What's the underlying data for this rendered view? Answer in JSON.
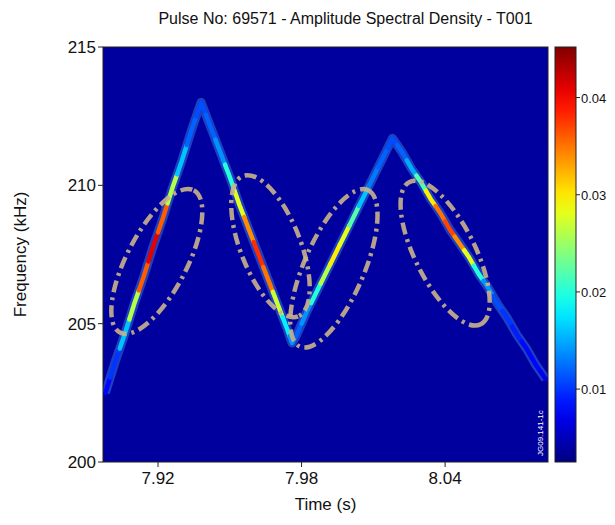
{
  "chart_data": {
    "type": "spectrogram",
    "title": "Pulse No: 69571 - Amplitude Spectral Density - T001",
    "x_label": "Time (s)",
    "y_label": "Frequency (kHz)",
    "x": [
      7.898,
      7.902,
      7.906,
      7.91,
      7.914,
      7.918,
      7.922,
      7.926,
      7.93,
      7.934,
      7.938,
      7.942,
      7.946,
      7.95,
      7.954,
      7.958,
      7.962,
      7.966,
      7.97,
      7.974,
      7.976,
      7.978,
      7.982,
      7.986,
      7.99,
      7.994,
      7.998,
      8.002,
      8.006,
      8.01,
      8.014,
      8.018,
      8.022,
      8.026,
      8.03,
      8.034,
      8.038,
      8.042,
      8.046,
      8.05,
      8.054,
      8.058,
      8.062,
      8.066,
      8.07,
      8.074,
      8.078,
      8.082
    ],
    "values": [
      202.5,
      203.6,
      204.6,
      205.7,
      206.7,
      207.8,
      208.8,
      209.9,
      210.9,
      212.0,
      213.0,
      212.1,
      211.2,
      210.3,
      209.3,
      208.4,
      207.5,
      206.6,
      205.7,
      204.8,
      204.3,
      204.6,
      205.4,
      206.1,
      206.8,
      207.5,
      208.2,
      208.9,
      209.6,
      210.3,
      211.0,
      211.7,
      211.2,
      210.6,
      210.1,
      209.5,
      209.0,
      208.4,
      207.9,
      207.4,
      206.8,
      206.3,
      205.7,
      205.2,
      204.6,
      204.1,
      203.5,
      203.0
    ],
    "amplitude": [
      0.008,
      0.01,
      0.016,
      0.026,
      0.036,
      0.041,
      0.036,
      0.026,
      0.016,
      0.012,
      0.011,
      0.012,
      0.014,
      0.02,
      0.028,
      0.034,
      0.038,
      0.035,
      0.027,
      0.018,
      0.014,
      0.012,
      0.014,
      0.02,
      0.026,
      0.03,
      0.028,
      0.022,
      0.016,
      0.013,
      0.012,
      0.011,
      0.012,
      0.015,
      0.022,
      0.03,
      0.035,
      0.037,
      0.034,
      0.028,
      0.02,
      0.014,
      0.011,
      0.01,
      0.009,
      0.008,
      0.008,
      0.007
    ],
    "xlim": [
      7.897,
      8.083
    ],
    "xticks": [
      7.92,
      7.98,
      8.04
    ],
    "ylim": [
      200,
      215
    ],
    "yticks": [
      200,
      205,
      210,
      215
    ],
    "colorbar_range": [
      0.0025,
      0.0452
    ],
    "colorbar_ticks": [
      0.01,
      0.02,
      0.03,
      0.04
    ],
    "highlights": [
      {
        "x": [
          7.906,
          7.933
        ],
        "y": [
          205.0,
          209.5
        ]
      },
      {
        "x": [
          7.957,
          7.977
        ],
        "y": [
          210.0,
          205.6
        ]
      },
      {
        "x": [
          7.981,
          8.006
        ],
        "y": [
          204.5,
          209.5
        ]
      },
      {
        "x": [
          8.027,
          8.053
        ],
        "y": [
          209.8,
          205.3
        ]
      }
    ],
    "annotations": [
      "JG09.141-1c"
    ]
  }
}
